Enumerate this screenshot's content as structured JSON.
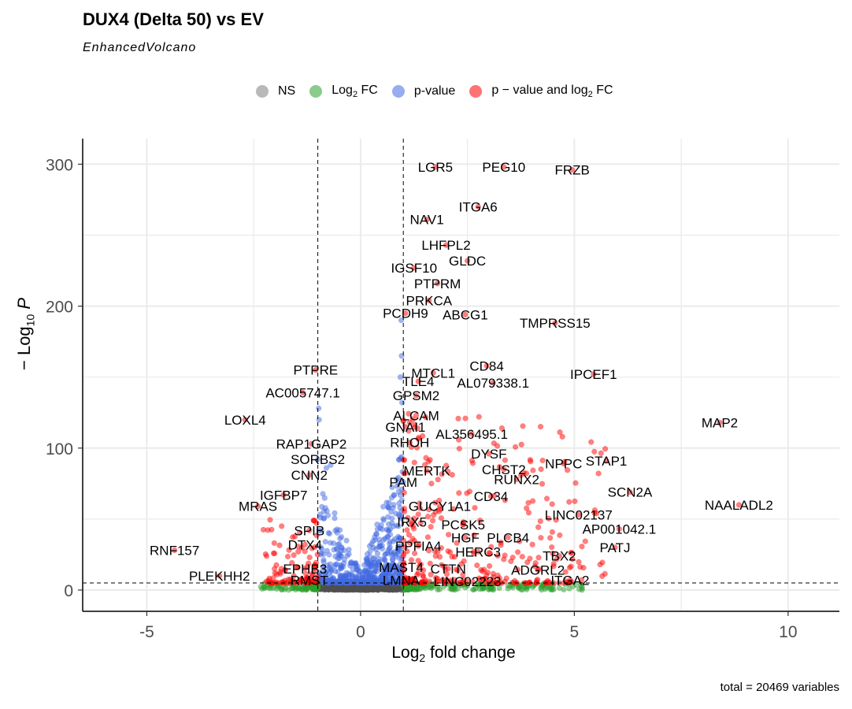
{
  "chart_data": {
    "type": "scatter",
    "title": "DUX4 (Delta 50) vs EV",
    "subtitle": "EnhancedVolcano",
    "caption": "total = 20469 variables",
    "xlabel_main": "Log",
    "xlabel_sub": "2",
    "xlabel_rest": " fold change",
    "ylabel_pre": "− Log",
    "ylabel_sub": "10",
    "ylabel_post": " P",
    "xlim": [
      -6.5,
      11.2
    ],
    "ylim": [
      -15,
      318
    ],
    "x_ticks": [
      -5,
      0,
      5,
      10
    ],
    "y_ticks": [
      0,
      100,
      200,
      300
    ],
    "fc_cutoff": 1,
    "p_cutoff_log": 5,
    "grid": true,
    "legend_position": "top",
    "legend": [
      {
        "key": "ns",
        "pre": "NS",
        "sub": "",
        "post": "",
        "color": "#7f7f7f"
      },
      {
        "key": "fc",
        "pre": "Log",
        "sub": "2",
        "post": " FC",
        "color": "#2ca02c"
      },
      {
        "key": "p",
        "pre": "p-value",
        "sub": "",
        "post": "",
        "color": "#4169e1"
      },
      {
        "key": "both",
        "pre": "p − value and log",
        "sub": "2",
        "post": " FC",
        "color": "#ff0000"
      }
    ],
    "labeled_genes": [
      {
        "gene": "LGR5",
        "x": 1.75,
        "y": 298
      },
      {
        "gene": "PEG10",
        "x": 3.35,
        "y": 298
      },
      {
        "gene": "FRZB",
        "x": 4.95,
        "y": 296
      },
      {
        "gene": "ITGA6",
        "x": 2.75,
        "y": 270
      },
      {
        "gene": "NAV1",
        "x": 1.55,
        "y": 261
      },
      {
        "gene": "LHFPL2",
        "x": 2.0,
        "y": 243
      },
      {
        "gene": "GLDC",
        "x": 2.5,
        "y": 232
      },
      {
        "gene": "IGSF10",
        "x": 1.25,
        "y": 227
      },
      {
        "gene": "PTPRM",
        "x": 1.8,
        "y": 216
      },
      {
        "gene": "PRKCA",
        "x": 1.6,
        "y": 204
      },
      {
        "gene": "PCDH9",
        "x": 1.05,
        "y": 195
      },
      {
        "gene": "ABCG1",
        "x": 2.45,
        "y": 194
      },
      {
        "gene": "TMPRSS15",
        "x": 4.55,
        "y": 188
      },
      {
        "gene": "PTPRE",
        "x": -1.05,
        "y": 155
      },
      {
        "gene": "MTCL1",
        "x": 1.7,
        "y": 153
      },
      {
        "gene": "CD84",
        "x": 2.95,
        "y": 158
      },
      {
        "gene": "IPCEF1",
        "x": 5.45,
        "y": 152
      },
      {
        "gene": "TLE4",
        "x": 1.35,
        "y": 147
      },
      {
        "gene": "AL079338.1",
        "x": 3.1,
        "y": 146
      },
      {
        "gene": "AC005747.1",
        "x": -1.35,
        "y": 139
      },
      {
        "gene": "GPSM2",
        "x": 1.3,
        "y": 137
      },
      {
        "gene": "ALCAM",
        "x": 1.3,
        "y": 123
      },
      {
        "gene": "LOXL4",
        "x": -2.7,
        "y": 120
      },
      {
        "gene": "MAP2",
        "x": 8.4,
        "y": 118
      },
      {
        "gene": "GNAI1",
        "x": 1.05,
        "y": 115
      },
      {
        "gene": "AL356495.1",
        "x": 2.6,
        "y": 110
      },
      {
        "gene": "RAP1GAP2",
        "x": -1.15,
        "y": 103
      },
      {
        "gene": "RHOH",
        "x": 1.15,
        "y": 104
      },
      {
        "gene": "DYSF",
        "x": 3.0,
        "y": 96
      },
      {
        "gene": "SORBS2",
        "x": -1.0,
        "y": 92
      },
      {
        "gene": "NPPC",
        "x": 4.75,
        "y": 89
      },
      {
        "gene": "STAP1",
        "x": 5.75,
        "y": 91
      },
      {
        "gene": "MERTK",
        "x": 1.55,
        "y": 84
      },
      {
        "gene": "CHST2",
        "x": 3.35,
        "y": 85
      },
      {
        "gene": "CNN2",
        "x": -1.2,
        "y": 81
      },
      {
        "gene": "RUNX2",
        "x": 3.65,
        "y": 78
      },
      {
        "gene": "PAM",
        "x": 1.0,
        "y": 76
      },
      {
        "gene": "SCN2A",
        "x": 6.3,
        "y": 69
      },
      {
        "gene": "IGFBP7",
        "x": -1.8,
        "y": 67
      },
      {
        "gene": "CD34",
        "x": 3.05,
        "y": 66
      },
      {
        "gene": "GUCY1A1",
        "x": 1.85,
        "y": 59
      },
      {
        "gene": "MRAS",
        "x": -2.4,
        "y": 59
      },
      {
        "gene": "NAALADL2",
        "x": 8.85,
        "y": 60
      },
      {
        "gene": "LINC02137",
        "x": 5.1,
        "y": 53
      },
      {
        "gene": "IRX5",
        "x": 1.2,
        "y": 48
      },
      {
        "gene": "PCSK5",
        "x": 2.4,
        "y": 46
      },
      {
        "gene": "AP001042.1",
        "x": 6.05,
        "y": 43
      },
      {
        "gene": "SPIB",
        "x": -1.2,
        "y": 42
      },
      {
        "gene": "HGF",
        "x": 2.45,
        "y": 37
      },
      {
        "gene": "PLCB4",
        "x": 3.45,
        "y": 37
      },
      {
        "gene": "DTX4",
        "x": -1.3,
        "y": 32
      },
      {
        "gene": "PPFIA4",
        "x": 1.35,
        "y": 31
      },
      {
        "gene": "PATJ",
        "x": 5.95,
        "y": 30
      },
      {
        "gene": "RNF157",
        "x": -4.35,
        "y": 28
      },
      {
        "gene": "HERC3",
        "x": 2.75,
        "y": 27
      },
      {
        "gene": "TBX2",
        "x": 4.65,
        "y": 24
      },
      {
        "gene": "MAST4",
        "x": 0.95,
        "y": 16
      },
      {
        "gene": "CTTN",
        "x": 2.05,
        "y": 15
      },
      {
        "gene": "ADGRL2",
        "x": 4.15,
        "y": 14
      },
      {
        "gene": "EPHB3",
        "x": -1.3,
        "y": 15
      },
      {
        "gene": "PLEKHH2",
        "x": -3.3,
        "y": 10
      },
      {
        "gene": "RMST",
        "x": -1.2,
        "y": 7
      },
      {
        "gene": "LMNA",
        "x": 0.95,
        "y": 7
      },
      {
        "gene": "LINC02223",
        "x": 2.5,
        "y": 6
      },
      {
        "gene": "ITGA2",
        "x": 4.9,
        "y": 7
      }
    ]
  }
}
